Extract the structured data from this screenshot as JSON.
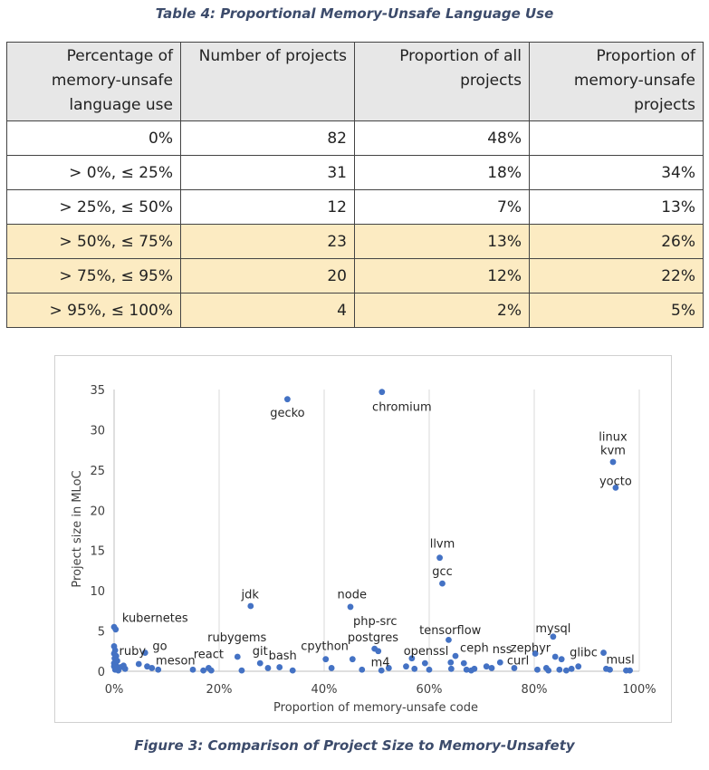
{
  "table": {
    "caption": "Table 4: Proportional Memory-Unsafe Language Use",
    "headers": [
      [
        "Percentage of",
        "memory-unsafe",
        "language use"
      ],
      [
        "Number of projects"
      ],
      [
        "Proportion of all",
        "projects"
      ],
      [
        "Proportion of",
        "memory-unsafe",
        "projects"
      ]
    ],
    "rows": [
      {
        "cells": [
          "0%",
          "82",
          "48%",
          ""
        ],
        "highlight": false
      },
      {
        "cells": [
          "> 0%, ≤ 25%",
          "31",
          "18%",
          "34%"
        ],
        "highlight": false
      },
      {
        "cells": [
          "> 25%, ≤ 50%",
          "12",
          "7%",
          "13%"
        ],
        "highlight": false
      },
      {
        "cells": [
          "> 50%, ≤ 75%",
          "23",
          "13%",
          "26%"
        ],
        "highlight": true
      },
      {
        "cells": [
          "> 75%, ≤ 95%",
          "20",
          "12%",
          "22%"
        ],
        "highlight": true
      },
      {
        "cells": [
          "> 95%, ≤ 100%",
          "4",
          "2%",
          "5%"
        ],
        "highlight": true
      }
    ],
    "highlight_color": "#fcebc2"
  },
  "figure": {
    "caption": "Figure 3: Comparison of Project Size to Memory-Unsafety"
  },
  "chart_data": {
    "type": "scatter",
    "xlabel": "Proportion of memory-unsafe code",
    "ylabel": "Project size in MLoC",
    "xlim": [
      0,
      100
    ],
    "ylim": [
      0,
      35
    ],
    "x_ticks": [
      "0%",
      "20%",
      "40%",
      "60%",
      "80%",
      "100%"
    ],
    "y_ticks": [
      "0",
      "5",
      "10",
      "15",
      "20",
      "25",
      "30",
      "35"
    ],
    "grid": "vertical",
    "marker_color": "#4472c4",
    "labels": [
      {
        "text": "gecko",
        "x": 33,
        "y": 32.2
      },
      {
        "text": "chromium",
        "x": 54.8,
        "y": 32.9
      },
      {
        "text": "linux",
        "x": 95,
        "y": 29.2
      },
      {
        "text": "kvm",
        "x": 95,
        "y": 27.5
      },
      {
        "text": "yocto",
        "x": 95.5,
        "y": 23.7
      },
      {
        "text": "llvm",
        "x": 62.5,
        "y": 15.9
      },
      {
        "text": "gcc",
        "x": 62.5,
        "y": 12.5
      },
      {
        "text": "jdk",
        "x": 25.9,
        "y": 9.6
      },
      {
        "text": "node",
        "x": 45.3,
        "y": 9.6
      },
      {
        "text": "kubernetes",
        "x": 7.8,
        "y": 6.7
      },
      {
        "text": "php-src",
        "x": 49.7,
        "y": 6.3
      },
      {
        "text": "mysql",
        "x": 83.6,
        "y": 5.4
      },
      {
        "text": "tensorflow",
        "x": 64,
        "y": 5.2
      },
      {
        "text": "rubygems",
        "x": 23.4,
        "y": 4.3
      },
      {
        "text": "postgres",
        "x": 49.3,
        "y": 4.3
      },
      {
        "text": "go",
        "x": 8.7,
        "y": 3.2
      },
      {
        "text": "cpython",
        "x": 40.1,
        "y": 3.2
      },
      {
        "text": "ceph",
        "x": 68.6,
        "y": 3.0
      },
      {
        "text": "nss",
        "x": 73.9,
        "y": 2.8
      },
      {
        "text": "zephyr",
        "x": 79.3,
        "y": 3.0
      },
      {
        "text": "ruby",
        "x": 3.5,
        "y": 2.6
      },
      {
        "text": "git",
        "x": 27.8,
        "y": 2.6
      },
      {
        "text": "openssl",
        "x": 59.4,
        "y": 2.6
      },
      {
        "text": "glibc",
        "x": 89.4,
        "y": 2.4
      },
      {
        "text": "react",
        "x": 18,
        "y": 2.2
      },
      {
        "text": "bash",
        "x": 32.1,
        "y": 2.0
      },
      {
        "text": "meson",
        "x": 11.7,
        "y": 1.4
      },
      {
        "text": "m4",
        "x": 50.7,
        "y": 1.2
      },
      {
        "text": "curl",
        "x": 76.9,
        "y": 1.4
      },
      {
        "text": "musl",
        "x": 96.4,
        "y": 1.5
      }
    ],
    "points": [
      {
        "x": 33,
        "y": 33.8
      },
      {
        "x": 51,
        "y": 34.7
      },
      {
        "x": 95,
        "y": 26.0
      },
      {
        "x": 95.5,
        "y": 22.8
      },
      {
        "x": 62,
        "y": 14.1
      },
      {
        "x": 62.5,
        "y": 10.9
      },
      {
        "x": 26,
        "y": 8.1
      },
      {
        "x": 45,
        "y": 8.0
      },
      {
        "x": 0,
        "y": 5.5
      },
      {
        "x": 0.3,
        "y": 5.2
      },
      {
        "x": 0,
        "y": 3.1
      },
      {
        "x": 0.2,
        "y": 2.6
      },
      {
        "x": 0,
        "y": 2.2
      },
      {
        "x": 0.4,
        "y": 1.9
      },
      {
        "x": 0.1,
        "y": 1.6
      },
      {
        "x": 0.6,
        "y": 1.3
      },
      {
        "x": 0,
        "y": 1.0
      },
      {
        "x": 0.3,
        "y": 0.8
      },
      {
        "x": 0,
        "y": 0.6
      },
      {
        "x": 0.5,
        "y": 0.4
      },
      {
        "x": 0.2,
        "y": 0.2
      },
      {
        "x": 0.8,
        "y": 0.1
      },
      {
        "x": 1.2,
        "y": 0.5
      },
      {
        "x": 1.8,
        "y": 0.7
      },
      {
        "x": 2.1,
        "y": 0.3
      },
      {
        "x": 4.7,
        "y": 0.9
      },
      {
        "x": 5.9,
        "y": 2.3
      },
      {
        "x": 6.3,
        "y": 0.6
      },
      {
        "x": 7.2,
        "y": 0.4
      },
      {
        "x": 8.4,
        "y": 0.2
      },
      {
        "x": 15,
        "y": 0.2
      },
      {
        "x": 17,
        "y": 0.1
      },
      {
        "x": 18,
        "y": 0.4
      },
      {
        "x": 18.5,
        "y": 0.1
      },
      {
        "x": 23.5,
        "y": 1.8
      },
      {
        "x": 24.3,
        "y": 0.1
      },
      {
        "x": 27.8,
        "y": 1.0
      },
      {
        "x": 29.3,
        "y": 0.4
      },
      {
        "x": 31.5,
        "y": 0.5
      },
      {
        "x": 34,
        "y": 0.1
      },
      {
        "x": 40.3,
        "y": 1.5
      },
      {
        "x": 41.4,
        "y": 0.4
      },
      {
        "x": 45.4,
        "y": 1.5
      },
      {
        "x": 47.2,
        "y": 0.2
      },
      {
        "x": 49.6,
        "y": 2.8
      },
      {
        "x": 50.3,
        "y": 2.5
      },
      {
        "x": 50.9,
        "y": 0.1
      },
      {
        "x": 52.3,
        "y": 0.4
      },
      {
        "x": 55.6,
        "y": 0.6
      },
      {
        "x": 56.7,
        "y": 1.6
      },
      {
        "x": 57.2,
        "y": 0.3
      },
      {
        "x": 59.2,
        "y": 1.0
      },
      {
        "x": 60,
        "y": 0.2
      },
      {
        "x": 63.7,
        "y": 3.9
      },
      {
        "x": 64.1,
        "y": 1.1
      },
      {
        "x": 64.2,
        "y": 0.3
      },
      {
        "x": 65,
        "y": 1.9
      },
      {
        "x": 66.6,
        "y": 1.0
      },
      {
        "x": 67.1,
        "y": 0.2
      },
      {
        "x": 68,
        "y": 0.1
      },
      {
        "x": 68.6,
        "y": 0.3
      },
      {
        "x": 70.9,
        "y": 0.6
      },
      {
        "x": 71.9,
        "y": 0.4
      },
      {
        "x": 73.5,
        "y": 1.1
      },
      {
        "x": 76.2,
        "y": 0.4
      },
      {
        "x": 80.2,
        "y": 2.2
      },
      {
        "x": 80.6,
        "y": 0.2
      },
      {
        "x": 82.3,
        "y": 0.4
      },
      {
        "x": 82.7,
        "y": 0.1
      },
      {
        "x": 83.6,
        "y": 4.3
      },
      {
        "x": 84,
        "y": 1.8
      },
      {
        "x": 84.8,
        "y": 0.2
      },
      {
        "x": 85.2,
        "y": 1.5
      },
      {
        "x": 86.1,
        "y": 0.1
      },
      {
        "x": 87.1,
        "y": 0.3
      },
      {
        "x": 88.4,
        "y": 0.6
      },
      {
        "x": 93.2,
        "y": 2.3
      },
      {
        "x": 93.7,
        "y": 0.3
      },
      {
        "x": 94.4,
        "y": 0.2
      },
      {
        "x": 97.5,
        "y": 0.1
      },
      {
        "x": 98.2,
        "y": 0.1
      }
    ]
  }
}
